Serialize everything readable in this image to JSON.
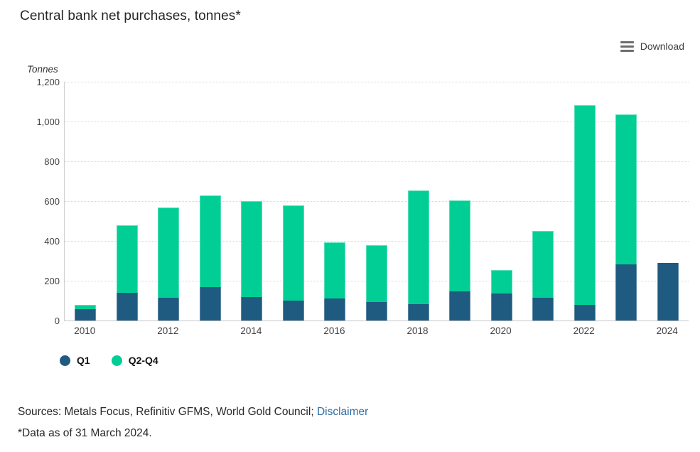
{
  "title": "Central bank net purchases, tonnes*",
  "toolbar": {
    "download_label": "Download"
  },
  "legend": {
    "items": [
      {
        "label": "Q1",
        "color": "#1F5A80"
      },
      {
        "label": "Q2-Q4",
        "color": "#00CE94"
      }
    ]
  },
  "footer": {
    "sources_prefix": "Sources: Metals Focus, Refinitiv GFMS, World Gold Council;",
    "disclaimer_label": "Disclaimer",
    "footnote": "*Data as of 31 March 2024."
  },
  "chart_data": {
    "type": "bar",
    "stacked": true,
    "title": "Central bank net purchases, tonnes*",
    "ylabel": "Tonnes",
    "xlabel": "",
    "categories": [
      "2010",
      "2011",
      "2012",
      "2013",
      "2014",
      "2015",
      "2016",
      "2017",
      "2018",
      "2019",
      "2020",
      "2021",
      "2022",
      "2023",
      "2024"
    ],
    "x_tick_labels": [
      "2010",
      "2012",
      "2014",
      "2016",
      "2018",
      "2020",
      "2022",
      "2024"
    ],
    "series": [
      {
        "name": "Q1",
        "color": "#1F5A80",
        "values": [
          58,
          139,
          116,
          167,
          119,
          100,
          110,
          92,
          81,
          145,
          136,
          114,
          78,
          284,
          290
        ]
      },
      {
        "name": "Q2-Q4",
        "color": "#00CE94",
        "values": [
          21,
          341,
          452,
          462,
          481,
          477,
          283,
          287,
          574,
          459,
          118,
          336,
          1004,
          753,
          0
        ]
      }
    ],
    "ylim": [
      0,
      1200
    ],
    "y_ticks": [
      0,
      200,
      400,
      600,
      800,
      1000,
      1200
    ],
    "y_tick_labels": [
      "0",
      "200",
      "400",
      "600",
      "800",
      "1,000",
      "1,200"
    ],
    "grid": "horizontal-dotted",
    "legend_position": "bottom-left"
  }
}
